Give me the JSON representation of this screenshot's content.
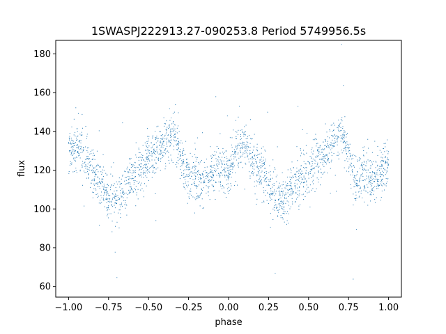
{
  "chart_data": {
    "type": "scatter",
    "title": "1SWASPJ222913.27-090253.8 Period 5749956.5s",
    "xlabel": "phase",
    "ylabel": "flux",
    "xlim": [
      -1.08,
      1.08
    ],
    "ylim": [
      54.5,
      187
    ],
    "xticks": [
      -1.0,
      -0.75,
      -0.5,
      -0.25,
      0.0,
      0.25,
      0.5,
      0.75,
      1.0
    ],
    "xtick_labels": [
      "−1.00",
      "−0.75",
      "−0.50",
      "−0.25",
      "0.00",
      "0.25",
      "0.50",
      "0.75",
      "1.00"
    ],
    "yticks": [
      60,
      80,
      100,
      120,
      140,
      160,
      180
    ],
    "ytick_labels": [
      "60",
      "80",
      "100",
      "120",
      "140",
      "160",
      "180"
    ],
    "grid": false,
    "legend": "none",
    "marker_color": "#1f77b4",
    "series": [
      {
        "x": [
          -1.0,
          -0.95,
          -0.9,
          -0.85,
          -0.8,
          -0.75,
          -0.7,
          -0.65,
          -0.6,
          -0.55,
          -0.5,
          -0.45,
          -0.4,
          -0.35,
          -0.3,
          -0.25,
          -0.2,
          -0.15,
          -0.1,
          -0.05,
          0.0,
          0.05,
          0.1,
          0.15,
          0.2,
          0.25,
          0.3,
          0.35,
          0.4,
          0.45,
          0.5,
          0.55,
          0.6,
          0.65,
          0.7,
          0.75,
          0.8,
          0.85,
          0.9,
          0.95,
          1.0
        ],
        "y": [
          130,
          133,
          126,
          119,
          112,
          106,
          104,
          110,
          117,
          121,
          126,
          128,
          133,
          140,
          127,
          116,
          117,
          114,
          118,
          122,
          120,
          130,
          133,
          126,
          119,
          112,
          106,
          104,
          110,
          117,
          121,
          126,
          128,
          133,
          140,
          127,
          116,
          117,
          114,
          118,
          122
        ]
      }
    ]
  }
}
